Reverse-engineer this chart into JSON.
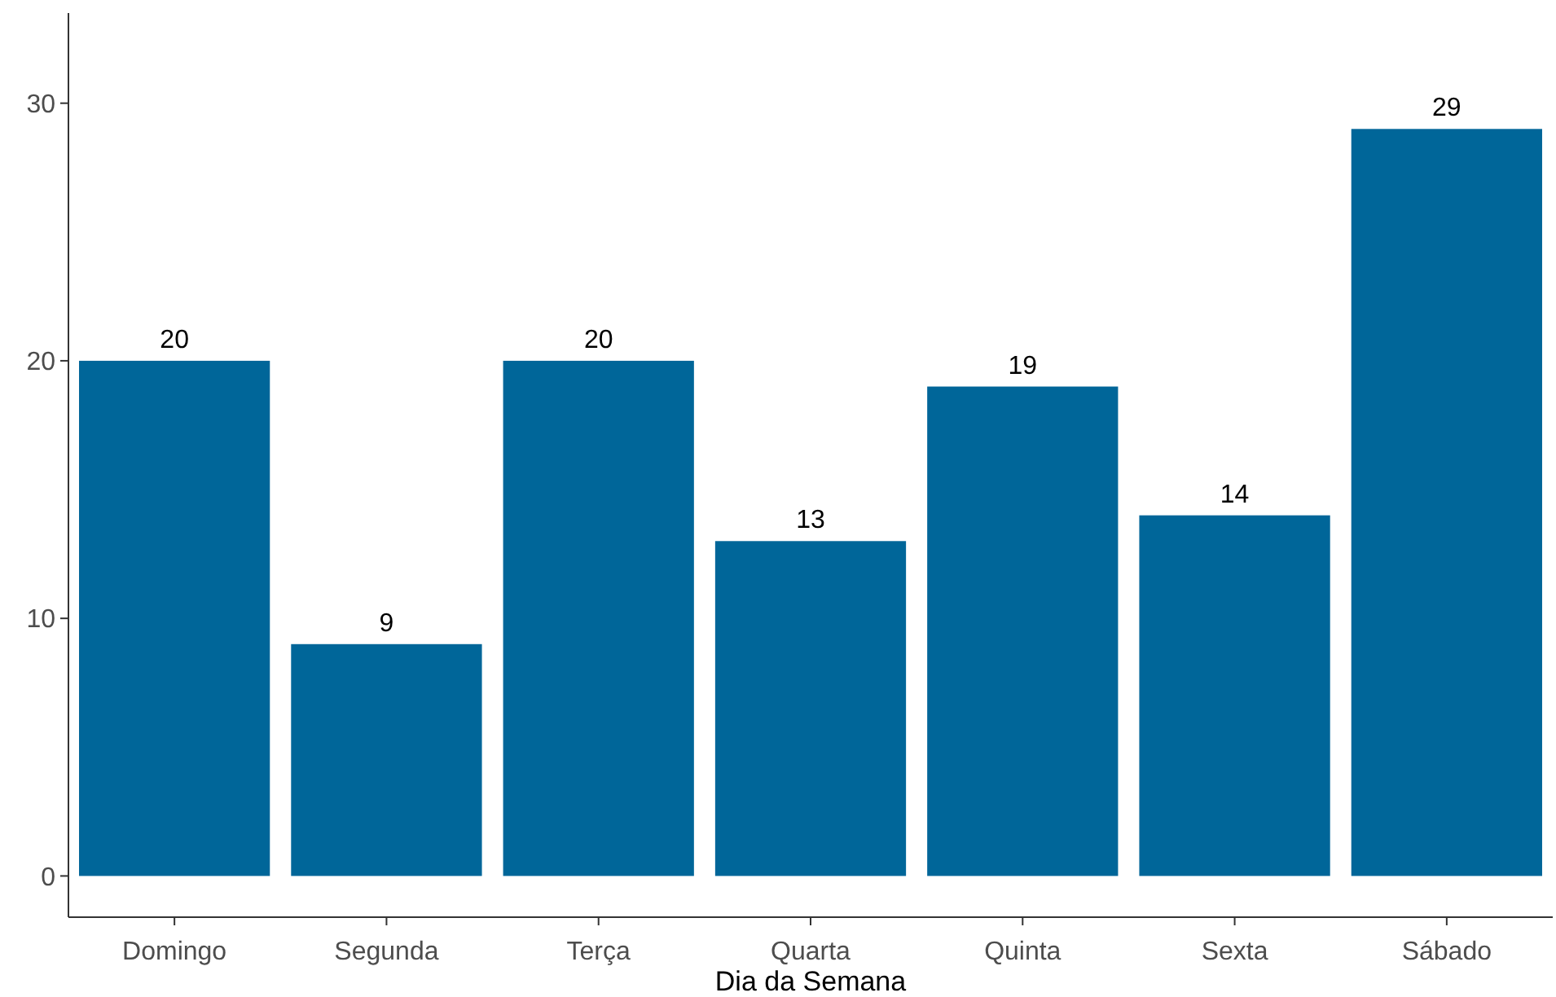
{
  "chart_data": {
    "type": "bar",
    "xlabel": "Dia da Semana",
    "categories": [
      "Domingo",
      "Segunda",
      "Terça",
      "Quarta",
      "Quinta",
      "Sexta",
      "Sábado"
    ],
    "values": [
      20,
      9,
      20,
      13,
      19,
      14,
      29
    ],
    "color": "#006699",
    "ylim": [
      -1.6,
      33.5
    ],
    "yticks": [
      0,
      10,
      20,
      30
    ],
    "grid": false,
    "data_labels": true
  }
}
